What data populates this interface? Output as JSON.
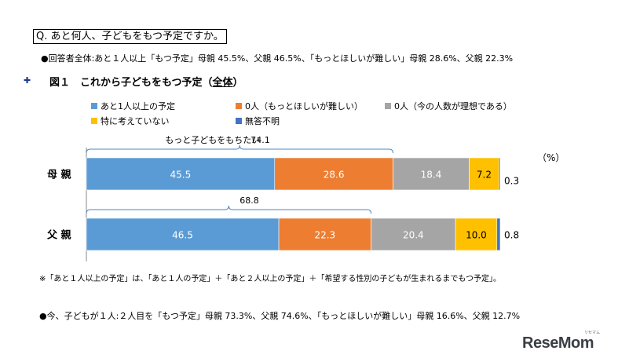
{
  "question": "Q. あと何人、子どもをもつ予定ですか。",
  "summary1": "●回答者全体:あと１人以上「もつ予定」母親 45.5%、父親 46.5%、「もっとほしいが難しい」母親 28.6%、父親 22.3%",
  "figure": {
    "marker": "✚",
    "title_prefix": "図１　これから子どもをもつ予定（",
    "title_em": "全体",
    "title_suffix": "）"
  },
  "unit": "（%）",
  "note": "※「あと１人以上の予定」は、「あと１人の予定」＋「あと２人以上の予定」＋「希望する性別の子どもが生まれるまでもつ予定」。",
  "summary2": "●今、子どもが１人:２人目を「もつ予定」母親 73.3%、父親 74.6%、「もっとほしいが難しい」母親 16.6%、父親 12.7%",
  "logo": {
    "main": "ReseMom",
    "sub": "リセマム"
  },
  "chart_data": {
    "type": "bar",
    "orientation": "horizontal-stacked",
    "categories": [
      "母親",
      "父親"
    ],
    "series": [
      {
        "name": "あと1人以上の予定",
        "color": "#5b9bd5",
        "values": [
          45.5,
          46.5
        ]
      },
      {
        "name": "0人（もっとほしいが難しい）",
        "color": "#ed7d31",
        "values": [
          28.6,
          22.3
        ]
      },
      {
        "name": "0人（今の人数が理想である）",
        "color": "#a5a5a5",
        "values": [
          18.4,
          20.4
        ]
      },
      {
        "name": "特に考えていない",
        "color": "#ffc000",
        "values": [
          7.2,
          10.0
        ]
      },
      {
        "name": "無答不明",
        "color": "#4472c4",
        "values": [
          0.3,
          0.8
        ]
      }
    ],
    "data_labels": [
      [
        "45.5",
        "28.6",
        "18.4",
        "7.2",
        "0.3"
      ],
      [
        "46.5",
        "22.3",
        "20.4",
        "10.0",
        "0.8"
      ]
    ],
    "bracket_annotations": [
      {
        "category": "母親",
        "label": "もっと子どもをもちたい",
        "value": "74.1",
        "series_span": [
          0,
          1
        ]
      },
      {
        "category": "父親",
        "value": "68.8",
        "series_span": [
          0,
          1
        ]
      }
    ],
    "xlim": [
      0,
      100
    ],
    "legend_position": "top"
  }
}
